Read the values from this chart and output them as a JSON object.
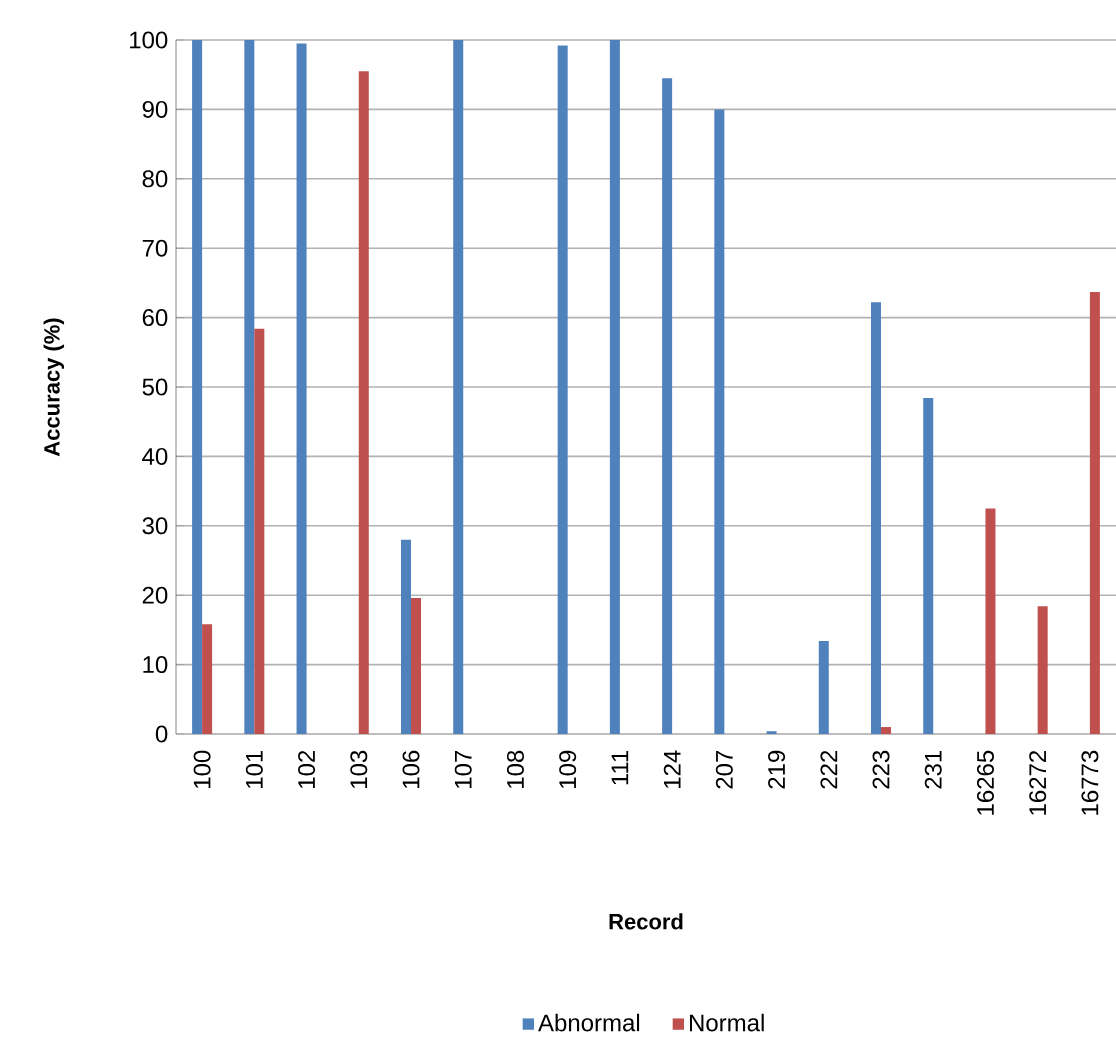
{
  "chart_data": {
    "type": "bar",
    "xlabel": "Record",
    "ylabel": "Accuracy (%)",
    "categories": [
      "100",
      "101",
      "102",
      "103",
      "106",
      "107",
      "108",
      "109",
      "111",
      "124",
      "207",
      "219",
      "222",
      "223",
      "231",
      "16265",
      "16272",
      "16773"
    ],
    "series": [
      {
        "name": "Abnormal",
        "color": "#4f81bd",
        "values": [
          100,
          100,
          99.5,
          0,
          28,
          100,
          0,
          99.2,
          100,
          94.5,
          90,
          0.4,
          13.4,
          62.2,
          48.4,
          0,
          0,
          0
        ]
      },
      {
        "name": "Normal",
        "color": "#c0504d",
        "values": [
          15.8,
          58.4,
          0,
          95.5,
          19.6,
          0,
          0,
          0,
          0,
          0,
          0,
          0,
          0,
          1,
          0,
          32.5,
          18.4,
          63.7
        ]
      }
    ],
    "ylim": [
      0,
      100
    ],
    "yticks": [
      0,
      10,
      20,
      30,
      40,
      50,
      60,
      70,
      80,
      90,
      100
    ],
    "grid": "y",
    "legend": "bottom"
  }
}
